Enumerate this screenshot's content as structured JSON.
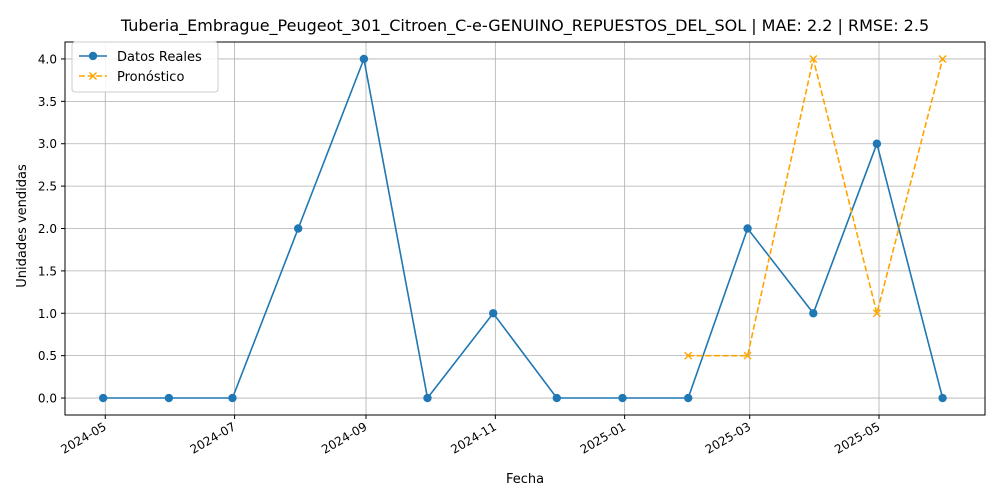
{
  "chart_data": {
    "type": "line",
    "title": "Tuberia_Embrague_Peugeot_301_Citroen_C-e-GENUINO_REPUESTOS_DEL_SOL | MAE: 2.2 | RMSE: 2.5",
    "xlabel": "Fecha",
    "ylabel": "Unidades vendidas",
    "ylim": [
      -0.2,
      4.2
    ],
    "xlim": [
      "2024-04-12",
      "2025-06-20"
    ],
    "grid": true,
    "legend_position": "top-left",
    "x_ticks": [
      "2024-05",
      "2024-07",
      "2024-09",
      "2024-11",
      "2025-01",
      "2025-03",
      "2025-05"
    ],
    "y_ticks": [
      "0.0",
      "0.5",
      "1.0",
      "1.5",
      "2.0",
      "2.5",
      "3.0",
      "3.5",
      "4.0"
    ],
    "series": [
      {
        "name": "Datos Reales",
        "color": "#1f77b4",
        "style": "solid",
        "marker": "circle",
        "x": [
          "2024-04-30",
          "2024-05-31",
          "2024-06-30",
          "2024-07-31",
          "2024-08-31",
          "2024-09-30",
          "2024-10-31",
          "2024-11-30",
          "2024-12-31",
          "2025-01-31",
          "2025-02-28",
          "2025-03-31",
          "2025-04-30",
          "2025-05-31"
        ],
        "values": [
          0,
          0,
          0,
          2,
          4,
          0,
          1,
          0,
          0,
          0,
          2,
          1,
          3,
          0
        ]
      },
      {
        "name": "Pronóstico",
        "color": "#ffa500",
        "style": "dashed",
        "marker": "x",
        "x": [
          "2025-01-31",
          "2025-02-28",
          "2025-03-31",
          "2025-04-30",
          "2025-05-31"
        ],
        "values": [
          0.5,
          0.5,
          4.0,
          1.0,
          4.0
        ]
      }
    ]
  }
}
